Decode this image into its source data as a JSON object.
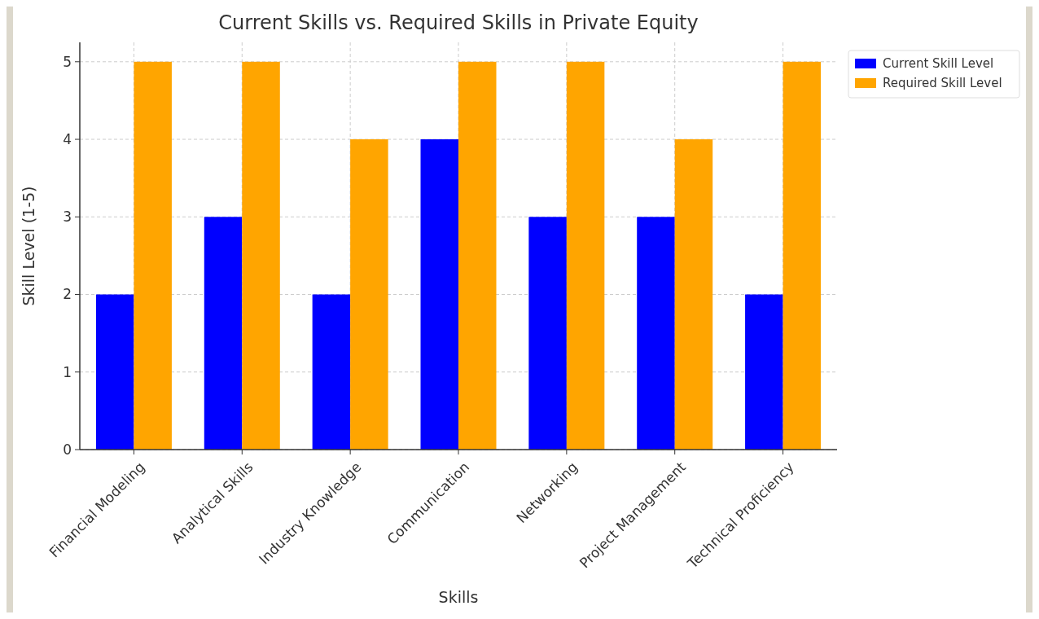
{
  "chart_data": {
    "type": "bar",
    "title": "Current Skills vs. Required Skills in Private Equity",
    "xlabel": "Skills",
    "ylabel": "Skill Level (1-5)",
    "categories": [
      "Financial Modeling",
      "Analytical Skills",
      "Industry Knowledge",
      "Communication",
      "Networking",
      "Project Management",
      "Technical Proficiency"
    ],
    "series": [
      {
        "name": "Current Skill Level",
        "color": "#0000ff",
        "values": [
          2,
          3,
          2,
          4,
          3,
          3,
          2
        ]
      },
      {
        "name": "Required Skill Level",
        "color": "#ffa500",
        "values": [
          5,
          5,
          4,
          5,
          5,
          4,
          5
        ]
      }
    ],
    "ylim": [
      0,
      5.25
    ],
    "yticks": [
      0,
      1,
      2,
      3,
      4,
      5
    ],
    "grid": true,
    "legend": "top right"
  }
}
